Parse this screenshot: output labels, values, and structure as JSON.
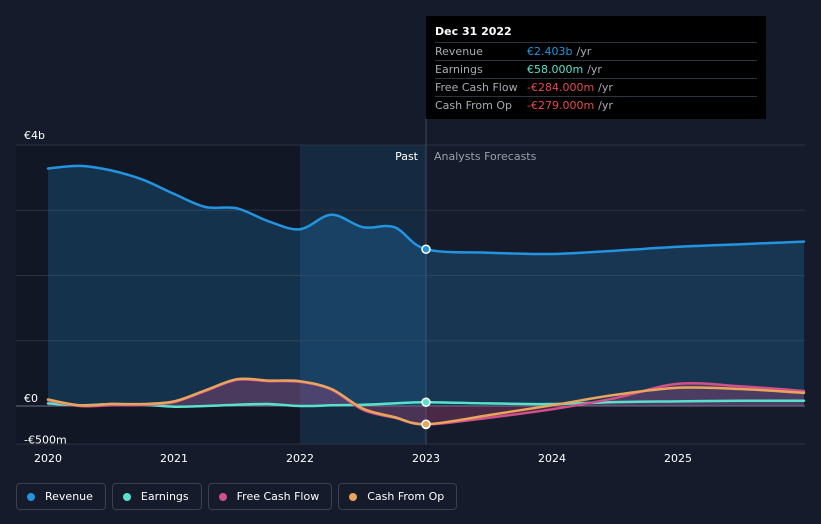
{
  "chart_data": {
    "type": "line",
    "x_ticks": [
      "2020",
      "2021",
      "2022",
      "2023",
      "2024",
      "2025"
    ],
    "y_ticks": [
      {
        "value": 4000,
        "label": "€4b"
      },
      {
        "value": 0,
        "label": "€0"
      },
      {
        "value": -500,
        "label": "-€500m"
      }
    ],
    "ylim": [
      -500,
      4000
    ],
    "xlim": [
      2020.0,
      2026.0
    ],
    "divider_x": 2023.0,
    "highlight_range": [
      2022.0,
      2023.0
    ],
    "past_label": "Past",
    "forecast_label": "Analysts Forecasts",
    "series": [
      {
        "name": "Revenue",
        "color": "#2394df",
        "fill": true,
        "x": [
          2020.0,
          2020.25,
          2020.5,
          2020.75,
          2021.0,
          2021.25,
          2021.5,
          2021.75,
          2022.0,
          2022.25,
          2022.5,
          2022.75,
          2023.0,
          2023.5,
          2024.0,
          2024.5,
          2025.0,
          2025.5,
          2026.0
        ],
        "values": [
          3640,
          3680,
          3610,
          3470,
          3250,
          3050,
          3030,
          2830,
          2710,
          2930,
          2740,
          2740,
          2403,
          2350,
          2330,
          2380,
          2440,
          2480,
          2520
        ]
      },
      {
        "name": "Earnings",
        "color": "#59e1cb",
        "fill": false,
        "x": [
          2020.0,
          2020.25,
          2020.5,
          2020.75,
          2021.0,
          2021.25,
          2021.5,
          2021.75,
          2022.0,
          2022.25,
          2022.5,
          2022.75,
          2023.0,
          2023.5,
          2024.0,
          2024.5,
          2025.0,
          2025.5,
          2026.0
        ],
        "values": [
          40,
          10,
          30,
          20,
          -10,
          0,
          20,
          30,
          0,
          10,
          20,
          40,
          58,
          40,
          30,
          60,
          70,
          80,
          80
        ]
      },
      {
        "name": "Free Cash Flow",
        "color": "#d0508b",
        "fill": true,
        "x": [
          2020.0,
          2020.25,
          2020.5,
          2020.75,
          2021.0,
          2021.25,
          2021.5,
          2021.75,
          2022.0,
          2022.25,
          2022.5,
          2022.75,
          2023.0,
          2023.5,
          2024.0,
          2024.5,
          2025.0,
          2025.5,
          2026.0
        ],
        "values": [
          90,
          0,
          10,
          20,
          60,
          230,
          400,
          380,
          370,
          250,
          -60,
          -180,
          -284,
          -180,
          -50,
          120,
          340,
          300,
          230
        ]
      },
      {
        "name": "Cash From Op",
        "color": "#e9a55b",
        "fill": false,
        "x": [
          2020.0,
          2020.25,
          2020.5,
          2020.75,
          2021.0,
          2021.25,
          2021.5,
          2021.75,
          2022.0,
          2022.25,
          2022.5,
          2022.75,
          2023.0,
          2023.5,
          2024.0,
          2024.5,
          2025.0,
          2025.5,
          2026.0
        ],
        "values": [
          100,
          10,
          30,
          30,
          70,
          240,
          410,
          390,
          380,
          260,
          -40,
          -170,
          -279,
          -140,
          10,
          170,
          280,
          260,
          200
        ]
      }
    ]
  },
  "tooltip": {
    "date": "Dec 31 2022",
    "rows": [
      {
        "name": "Revenue",
        "value": "€2.403b",
        "unit": "/yr",
        "color": "#2394df"
      },
      {
        "name": "Earnings",
        "value": "€58.000m",
        "unit": "/yr",
        "color": "#59e1cb"
      },
      {
        "name": "Free Cash Flow",
        "value": "-€284.000m",
        "unit": "/yr",
        "color": "#e64a4a"
      },
      {
        "name": "Cash From Op",
        "value": "-€279.000m",
        "unit": "/yr",
        "color": "#e64a4a"
      }
    ]
  },
  "legend": [
    {
      "label": "Revenue",
      "color": "#2394df"
    },
    {
      "label": "Earnings",
      "color": "#59e1cb"
    },
    {
      "label": "Free Cash Flow",
      "color": "#d0508b"
    },
    {
      "label": "Cash From Op",
      "color": "#e9a55b"
    }
  ]
}
